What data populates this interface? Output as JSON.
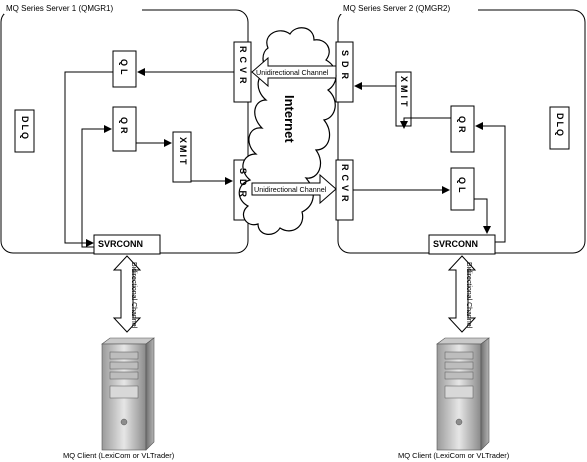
{
  "server1": {
    "title": "MQ Series Server 1 (QMGR1)",
    "dlq": "DLQ",
    "ql": "QL",
    "qr": "QR",
    "xmit": "XMIT",
    "rcvr": "RCVR",
    "sdr": "SDR",
    "svrconn": "SVRCONN"
  },
  "server2": {
    "title": "MQ Series Server 2 (QMGR2)",
    "dlq": "DLQ",
    "ql": "QL",
    "qr": "QR",
    "xmit": "XMIT",
    "rcvr": "RCVR",
    "sdr": "SDR",
    "svrconn": "SVRCONN"
  },
  "internet_label": "Internet",
  "channels": {
    "top": "Unidirectional Channel",
    "bottom": "Unidirectional Channel",
    "client1": "Bidirectional Channel",
    "client2": "Bidirectional Channel"
  },
  "clients": {
    "client1": "MQ Client (LexiCom or VLTrader)",
    "client2": "MQ Client (LexiCom or VLTrader)"
  },
  "icons": [
    "cloud-icon",
    "server-tower-icon"
  ]
}
